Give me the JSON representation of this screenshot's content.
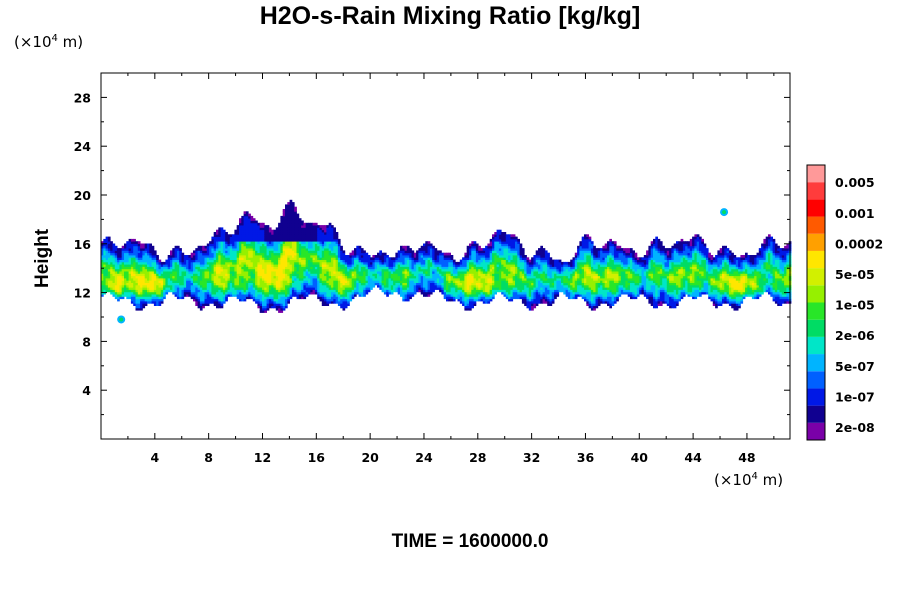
{
  "title": "H2O-s-Rain Mixing Ratio [kg/kg]",
  "y_unit": {
    "prefix": "(×10",
    "exp": "4",
    "suffix": " m)"
  },
  "x_unit": {
    "prefix": "(×10",
    "exp": "4",
    "suffix": " m)"
  },
  "time_label": "TIME = 1600000.0",
  "chart_data": {
    "type": "heatmap",
    "title": "H2O-s-Rain Mixing Ratio [kg/kg]",
    "ylabel": "Height",
    "xlabel": "",
    "xlim": [
      0,
      51.2
    ],
    "ylim": [
      0,
      30
    ],
    "x_ticks": [
      4,
      8,
      12,
      16,
      20,
      24,
      28,
      32,
      36,
      40,
      44,
      48
    ],
    "y_ticks": [
      4,
      8,
      12,
      16,
      20,
      24,
      28
    ],
    "colorbar": {
      "labels": [
        "0.005",
        "0.001",
        "0.0002",
        "5e-05",
        "1e-05",
        "2e-06",
        "5e-07",
        "1e-07",
        "2e-08"
      ],
      "colors": [
        "#7a00a8",
        "#100090",
        "#0018e6",
        "#0060ff",
        "#00b4ff",
        "#00e6c8",
        "#00dc64",
        "#28e628",
        "#96f000",
        "#d2f000",
        "#ffe600",
        "#ffa000",
        "#ff5a00",
        "#ff0000",
        "#ff3c3c",
        "#ff9999"
      ]
    },
    "layer": {
      "base_height": 11.2,
      "top_height": 15.6,
      "max_top_height": 19.9,
      "core_height": 12.6,
      "upper_anvil_x": [
        9,
        16
      ],
      "isolated_cells": [
        {
          "x": 1.5,
          "y": 9.8
        },
        {
          "x": 46.3,
          "y": 18.6
        }
      ]
    }
  }
}
